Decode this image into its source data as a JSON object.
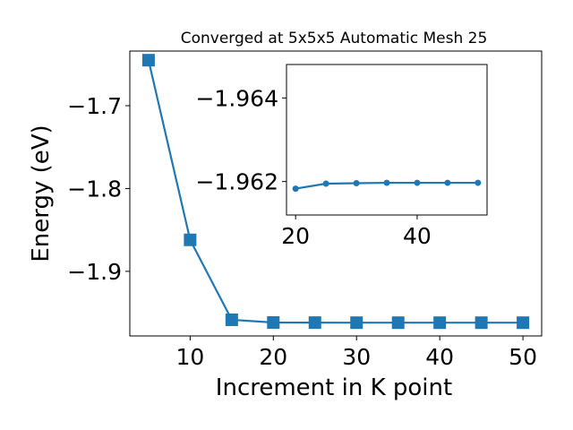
{
  "chart_data": [
    {
      "type": "line",
      "title": "Converged at 5x5x5 Automatic Mesh 25",
      "xlabel": "Increment in K point",
      "ylabel": "Energy (eV)",
      "x": [
        5,
        10,
        15,
        20,
        25,
        30,
        35,
        40,
        45,
        50
      ],
      "series": [
        {
          "values": [
            -1.645,
            -1.862,
            -1.9585,
            -1.9618,
            -1.9619,
            -1.962,
            -1.962,
            -1.962,
            -1.962,
            -1.962
          ]
        }
      ],
      "xlim": [
        2.75,
        52.25
      ],
      "ylim": [
        -1.978,
        -1.634
      ],
      "xticks": [
        10,
        20,
        30,
        40,
        50
      ],
      "xtick_labels": [
        "10",
        "20",
        "30",
        "40",
        "50"
      ],
      "yticks": [
        -1.7,
        -1.8,
        -1.9
      ],
      "ytick_labels": [
        "−1.7",
        "−1.8",
        "−1.9"
      ],
      "marker": "square",
      "grid": false,
      "color": "#1f77b4"
    },
    {
      "type": "line",
      "title": "",
      "xlabel": "",
      "ylabel": "",
      "x": [
        20,
        25,
        30,
        35,
        40,
        45,
        50
      ],
      "series": [
        {
          "values": [
            -1.96183,
            -1.96195,
            -1.96196,
            -1.96197,
            -1.96197,
            -1.96197,
            -1.96197
          ]
        }
      ],
      "xlim": [
        18.5,
        51.5
      ],
      "ylim": [
        -1.9612,
        -1.9648
      ],
      "xticks": [
        20,
        40
      ],
      "xtick_labels": [
        "20",
        "40"
      ],
      "yticks": [
        -1.962,
        -1.964
      ],
      "ytick_labels": [
        "−1.962",
        "−1.964"
      ],
      "marker": "circle",
      "grid": false,
      "color": "#1f77b4"
    }
  ]
}
